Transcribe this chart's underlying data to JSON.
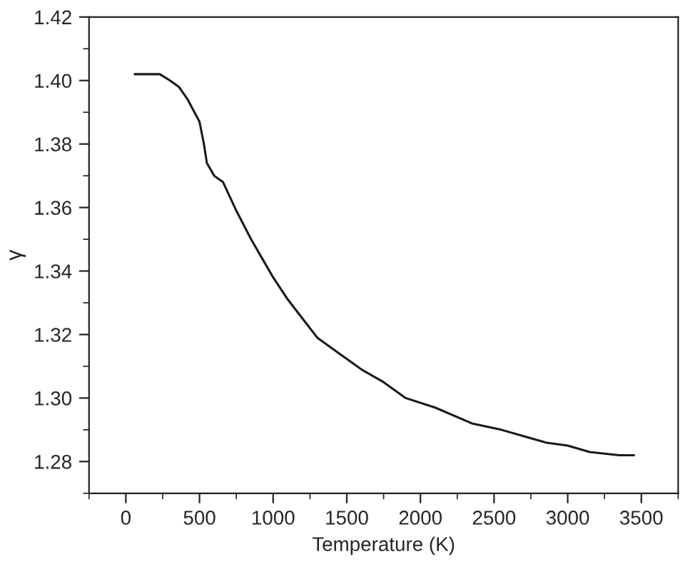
{
  "chart_data": {
    "type": "line",
    "xlabel": "Temperature (K)",
    "ylabel": "γ",
    "x": [
      60,
      150,
      230,
      300,
      360,
      420,
      500,
      530,
      550,
      600,
      660,
      750,
      850,
      950,
      1000,
      1100,
      1200,
      1300,
      1450,
      1600,
      1750,
      1900,
      2100,
      2350,
      2550,
      2700,
      2850,
      3000,
      3150,
      3350,
      3450
    ],
    "series": [
      {
        "color": "#1a1a1a",
        "values": [
          1.402,
          1.402,
          1.402,
          1.4,
          1.398,
          1.394,
          1.387,
          1.38,
          1.374,
          1.37,
          1.368,
          1.359,
          1.35,
          1.342,
          1.338,
          1.331,
          1.325,
          1.319,
          1.314,
          1.309,
          1.305,
          1.3,
          1.297,
          1.292,
          1.29,
          1.288,
          1.286,
          1.285,
          1.283,
          1.282,
          1.282
        ]
      }
    ],
    "xlim": [
      -250,
      3750
    ],
    "xticks": [
      {
        "value": -250,
        "label": null
      },
      0,
      {
        "value": 250,
        "label": null
      },
      500,
      {
        "value": 750,
        "label": null
      },
      1000,
      {
        "value": 1250,
        "label": null
      },
      1500,
      {
        "value": 1750,
        "label": null
      },
      2000,
      {
        "value": 2250,
        "label": null
      },
      2500,
      {
        "value": 2750,
        "label": null
      },
      3000,
      {
        "value": 3250,
        "label": null
      },
      3500,
      {
        "value": 3750,
        "label": null
      }
    ],
    "ylim": [
      1.27,
      1.42
    ],
    "yticks": [
      {
        "value": 1.27,
        "label": null
      },
      {
        "value": 1.28,
        "label": "1.28"
      },
      {
        "value": 1.29,
        "label": null
      },
      {
        "value": 1.3,
        "label": "1.30"
      },
      {
        "value": 1.31,
        "label": null
      },
      {
        "value": 1.32,
        "label": "1.32"
      },
      {
        "value": 1.33,
        "label": null
      },
      {
        "value": 1.34,
        "label": "1.34"
      },
      {
        "value": 1.35,
        "label": null
      },
      {
        "value": 1.36,
        "label": "1.36"
      },
      {
        "value": 1.37,
        "label": null
      },
      {
        "value": 1.38,
        "label": "1.38"
      },
      {
        "value": 1.39,
        "label": null
      },
      {
        "value": 1.4,
        "label": "1.40"
      },
      {
        "value": 1.41,
        "label": null
      },
      {
        "value": 1.42,
        "label": "1.42"
      }
    ],
    "grid": false,
    "legend": false,
    "marker": "none",
    "line_style": "solid"
  }
}
